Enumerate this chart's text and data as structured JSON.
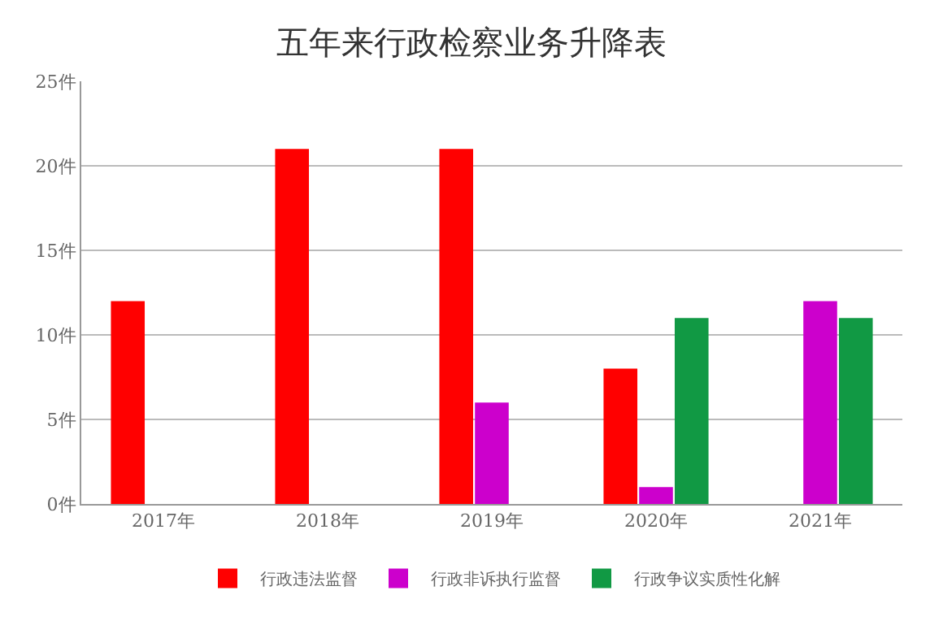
{
  "chart_data": {
    "type": "bar",
    "title": "五年来行政检察业务升降表",
    "categories": [
      "2017年",
      "2018年",
      "2019年",
      "2020年",
      "2021年"
    ],
    "series": [
      {
        "name": "行政违法监督",
        "color": "#ff0000",
        "values": [
          12,
          21,
          21,
          8,
          0
        ]
      },
      {
        "name": "行政非诉执行监督",
        "color": "#cc00cc",
        "values": [
          null,
          null,
          6,
          1,
          12
        ]
      },
      {
        "name": "行政争议实质性化解",
        "color": "#119944",
        "values": [
          null,
          null,
          null,
          11,
          11
        ]
      }
    ],
    "ylim": [
      0,
      25
    ],
    "yticks": [
      {
        "value": 0,
        "label": "0件"
      },
      {
        "value": 5,
        "label": "5件"
      },
      {
        "value": 10,
        "label": "10件"
      },
      {
        "value": 15,
        "label": "15件"
      },
      {
        "value": 20,
        "label": "20件"
      },
      {
        "value": 25,
        "label": "25件"
      }
    ],
    "grid": "y",
    "legend": "bottom"
  }
}
